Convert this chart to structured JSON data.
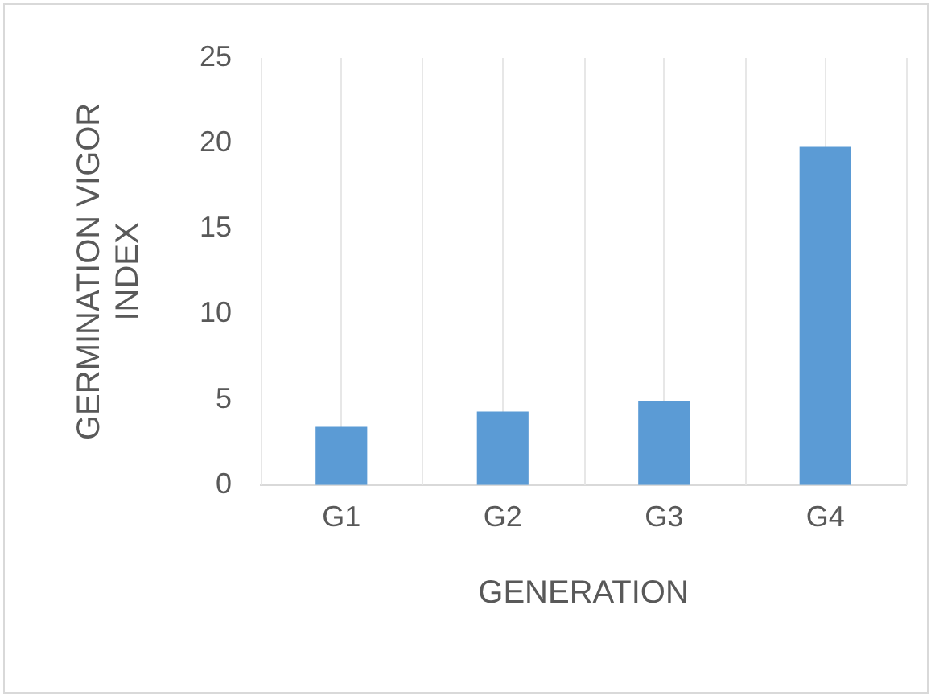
{
  "chart_data": {
    "type": "bar",
    "xlabel": "GENERATION",
    "ylabel": "GERMINATION VIGOR INDEX",
    "categories": [
      "G1",
      "G2",
      "G3",
      "G4"
    ],
    "values": [
      3.4,
      4.3,
      4.9,
      19.8
    ],
    "color": "#5b9bd5",
    "ylim": [
      0,
      25
    ],
    "yticks": [
      0,
      5,
      10,
      15,
      20,
      25
    ],
    "grid": "x"
  }
}
